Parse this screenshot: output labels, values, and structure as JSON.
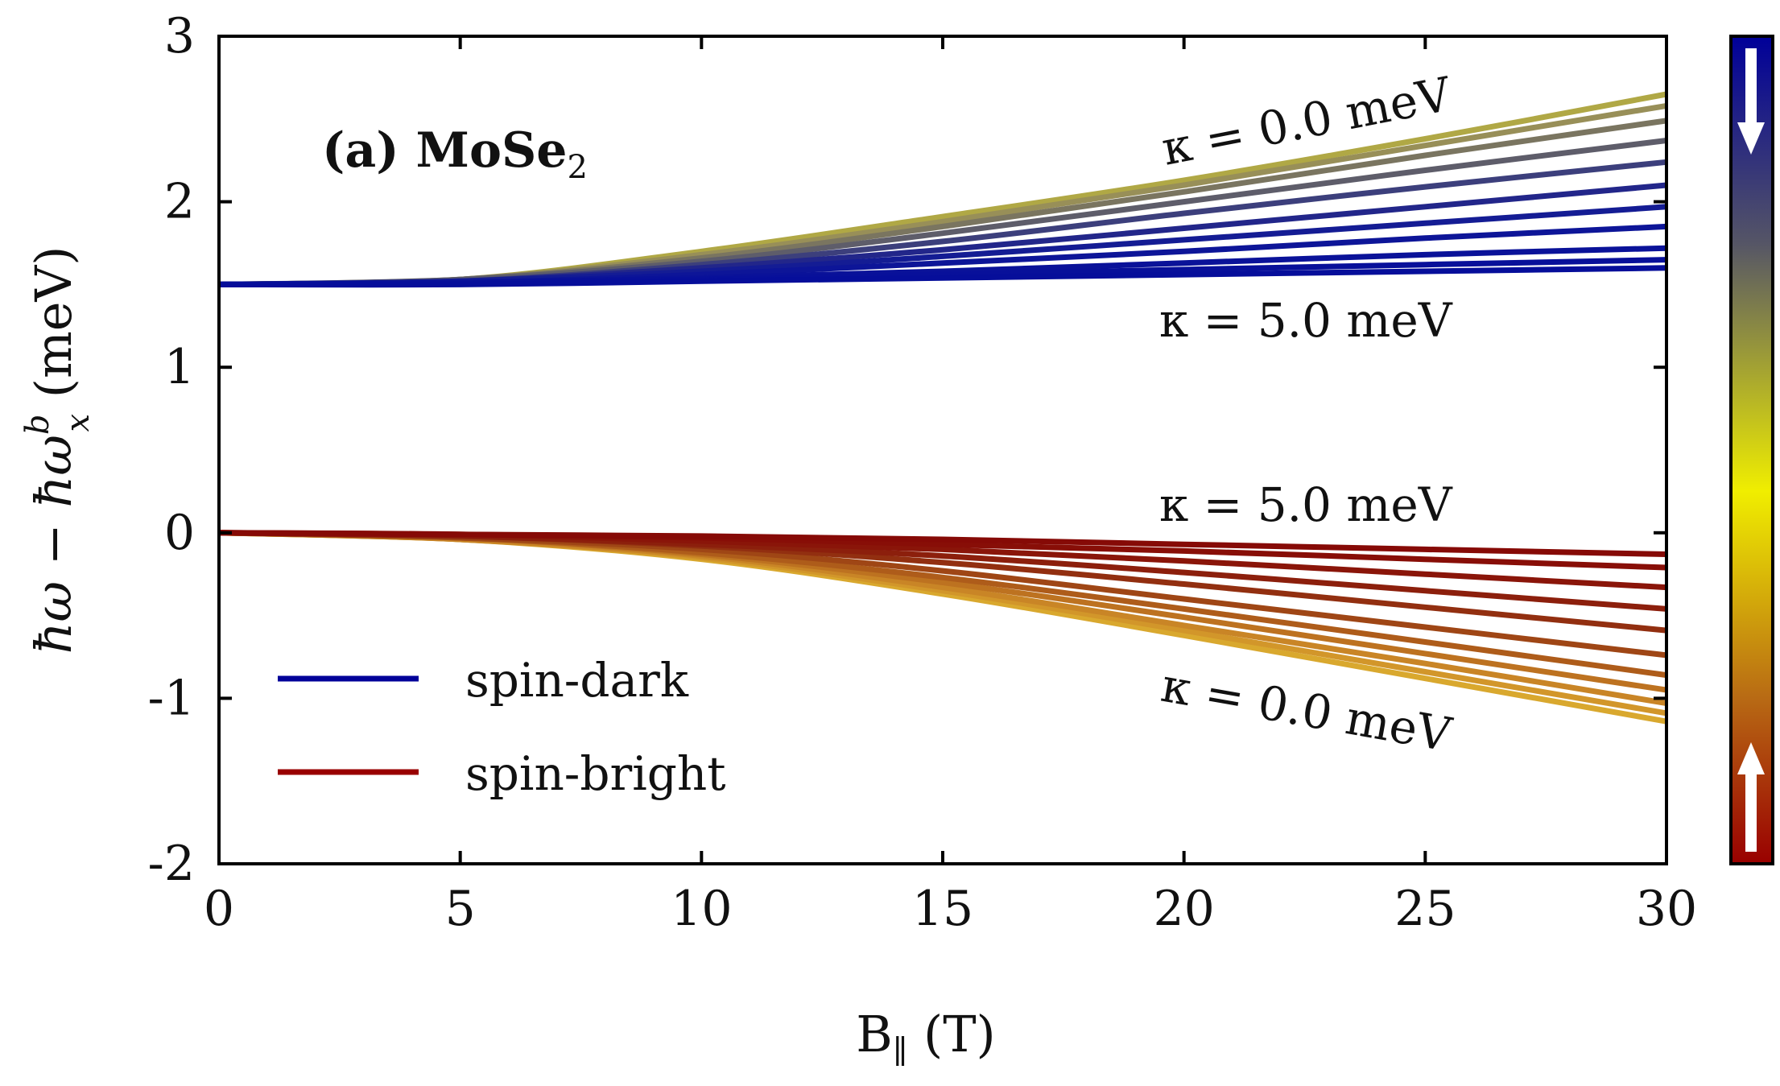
{
  "chart_data": {
    "type": "line",
    "panel_label": "(a) MoSe",
    "panel_label_sub": "2",
    "xlabel_main": "B",
    "xlabel_sub": "∥",
    "xlabel_unit": " (T)",
    "ylabel_text": "ħω − ħω",
    "ylabel_sup": "b",
    "ylabel_sub": "x",
    "ylabel_unit": " (meV)",
    "xlim": [
      0,
      30
    ],
    "ylim": [
      -2,
      3
    ],
    "x_ticks": [
      0,
      5,
      10,
      15,
      20,
      25,
      30
    ],
    "y_ticks": [
      -2,
      -1,
      0,
      1,
      2,
      3
    ],
    "x_tick_labels": [
      "0",
      "5",
      "10",
      "15",
      "20",
      "25",
      "30"
    ],
    "y_tick_labels": [
      "-2",
      "-1",
      "0",
      "1",
      "2",
      "3"
    ],
    "grid": false,
    "legend_position": "bottom-left",
    "legend": [
      {
        "name": "spin-dark",
        "color": "#000099"
      },
      {
        "name": "spin-bright",
        "color": "#990000"
      }
    ],
    "annotations": {
      "dark_top": "κ = 0.0 meV",
      "dark_bottom": "κ = 5.0 meV",
      "bright_top": "κ = 5.0 meV",
      "bright_bottom": "κ = 0.0 meV"
    },
    "x": [
      0,
      5,
      10,
      15,
      20,
      25,
      30
    ],
    "series_dark": [
      {
        "kappa": 0.0,
        "values": [
          1.5,
          1.53,
          1.7,
          1.91,
          2.13,
          2.38,
          2.65
        ],
        "color": "#b0a845"
      },
      {
        "kappa": 0.5,
        "values": [
          1.5,
          1.53,
          1.68,
          1.88,
          2.1,
          2.34,
          2.58
        ],
        "color": "#988f58"
      },
      {
        "kappa": 1.0,
        "values": [
          1.5,
          1.53,
          1.66,
          1.85,
          2.06,
          2.28,
          2.49
        ],
        "color": "#7a7560"
      },
      {
        "kappa": 1.5,
        "values": [
          1.5,
          1.53,
          1.64,
          1.81,
          2.0,
          2.19,
          2.37
        ],
        "color": "#5e5d6a"
      },
      {
        "kappa": 2.0,
        "values": [
          1.5,
          1.52,
          1.62,
          1.76,
          1.93,
          2.09,
          2.24
        ],
        "color": "#3c3f7c"
      },
      {
        "kappa": 2.5,
        "values": [
          1.5,
          1.52,
          1.6,
          1.71,
          1.84,
          1.97,
          2.1
        ],
        "color": "#22268a"
      },
      {
        "kappa": 3.0,
        "values": [
          1.5,
          1.52,
          1.58,
          1.67,
          1.77,
          1.87,
          1.97
        ],
        "color": "#141c94"
      },
      {
        "kappa": 3.5,
        "values": [
          1.5,
          1.51,
          1.56,
          1.63,
          1.7,
          1.78,
          1.85
        ],
        "color": "#0d1598"
      },
      {
        "kappa": 4.0,
        "values": [
          1.5,
          1.51,
          1.54,
          1.58,
          1.63,
          1.68,
          1.72
        ],
        "color": "#0a1299"
      },
      {
        "kappa": 4.5,
        "values": [
          1.5,
          1.51,
          1.53,
          1.56,
          1.59,
          1.62,
          1.65
        ],
        "color": "#08109a"
      },
      {
        "kappa": 5.0,
        "values": [
          1.5,
          1.5,
          1.52,
          1.54,
          1.56,
          1.58,
          1.6
        ],
        "color": "#060e9a"
      }
    ],
    "series_bright": [
      {
        "kappa": 0.0,
        "values": [
          0.0,
          -0.04,
          -0.16,
          -0.37,
          -0.62,
          -0.88,
          -1.14
        ],
        "color": "#d9a82e"
      },
      {
        "kappa": 0.5,
        "values": [
          0.0,
          -0.04,
          -0.15,
          -0.35,
          -0.59,
          -0.84,
          -1.09
        ],
        "color": "#d2962a"
      },
      {
        "kappa": 1.0,
        "values": [
          0.0,
          -0.04,
          -0.14,
          -0.33,
          -0.56,
          -0.79,
          -1.03
        ],
        "color": "#c98526"
      },
      {
        "kappa": 1.5,
        "values": [
          0.0,
          -0.03,
          -0.13,
          -0.3,
          -0.51,
          -0.73,
          -0.95
        ],
        "color": "#bd7220"
      },
      {
        "kappa": 2.0,
        "values": [
          0.0,
          -0.03,
          -0.12,
          -0.27,
          -0.46,
          -0.66,
          -0.86
        ],
        "color": "#ae5c1a"
      },
      {
        "kappa": 2.5,
        "values": [
          0.0,
          -0.03,
          -0.1,
          -0.23,
          -0.4,
          -0.57,
          -0.74
        ],
        "color": "#9f4615"
      },
      {
        "kappa": 3.0,
        "values": [
          0.0,
          -0.02,
          -0.08,
          -0.18,
          -0.31,
          -0.45,
          -0.59
        ],
        "color": "#922f10"
      },
      {
        "kappa": 3.5,
        "values": [
          0.0,
          -0.02,
          -0.07,
          -0.14,
          -0.24,
          -0.35,
          -0.46
        ],
        "color": "#8c1f0c"
      },
      {
        "kappa": 4.0,
        "values": [
          0.0,
          -0.01,
          -0.05,
          -0.1,
          -0.17,
          -0.25,
          -0.33
        ],
        "color": "#8a1509"
      },
      {
        "kappa": 4.5,
        "values": [
          0.0,
          -0.01,
          -0.03,
          -0.07,
          -0.11,
          -0.16,
          -0.21
        ],
        "color": "#880e07"
      },
      {
        "kappa": 5.0,
        "values": [
          0.0,
          -0.01,
          -0.02,
          -0.04,
          -0.07,
          -0.1,
          -0.13
        ],
        "color": "#860a06"
      }
    ],
    "colorbar": {
      "top_color": "#000099",
      "upper_color": "#555566",
      "mid_color": "#f0ee00",
      "lower_color": "#b86a14",
      "bottom_color": "#990000",
      "top_arrow": "down",
      "bottom_arrow": "up"
    }
  }
}
